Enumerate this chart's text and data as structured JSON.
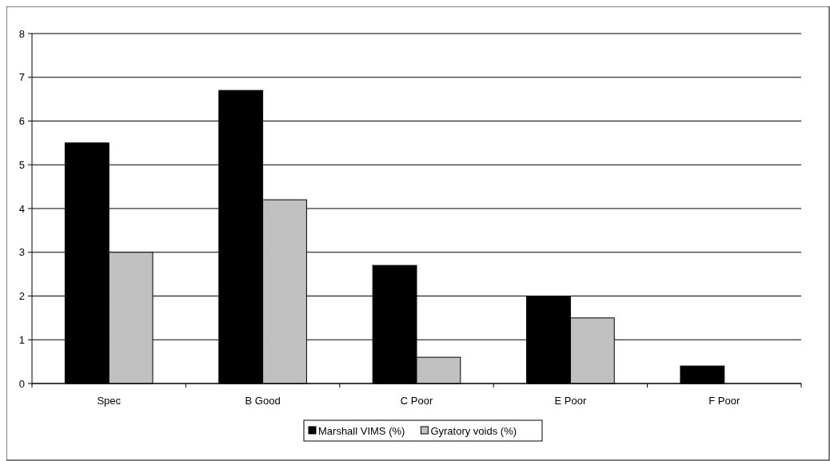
{
  "chart_data": {
    "type": "bar",
    "categories": [
      "Spec",
      "B Good",
      "C Poor",
      "E Poor",
      "F Poor"
    ],
    "series": [
      {
        "name": "Marshall VIMS (%)",
        "color": "#000000",
        "values": [
          5.5,
          6.7,
          2.7,
          2.0,
          0.4
        ]
      },
      {
        "name": "Gyratory voids (%)",
        "color": "#c0c0c0",
        "values": [
          3.0,
          4.2,
          0.6,
          1.5,
          null
        ]
      }
    ],
    "ylim": [
      0,
      8
    ],
    "yticks": [
      0,
      1,
      2,
      3,
      4,
      5,
      6,
      7,
      8
    ],
    "grid": "y",
    "legend": "bottom"
  }
}
